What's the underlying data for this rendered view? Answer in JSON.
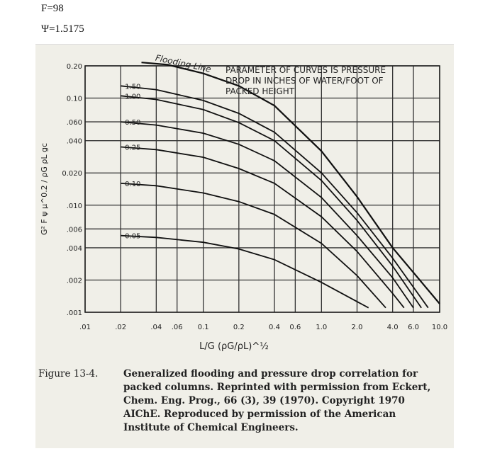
{
  "header": {
    "f_line": "F=98",
    "psi_line": "Ψ=1.5175"
  },
  "figure": {
    "label": "Figure 13-4.",
    "caption": "Generalized flooding and pressure drop correlation for packed columns. Reprinted with permission from Eckert, Chem. Eng. Prog., 66 (3), 39 (1970). Copyright 1970 AIChE. Reproduced by permission of the American Institute of Chemical Engineers."
  },
  "chart_data": {
    "type": "line",
    "xscale": "log",
    "yscale": "log",
    "xlim": [
      0.01,
      10.0
    ],
    "ylim": [
      0.001,
      0.2
    ],
    "grid": true,
    "x_tick_labels": [
      ".01",
      ".02",
      ".04",
      ".06",
      "0.1",
      "0.2",
      "0.4",
      "0.6",
      "1.0",
      "2.0",
      "4.0",
      "6.0",
      "10.0"
    ],
    "y_tick_labels": [
      "0.20",
      "0.10",
      ".060",
      ".040",
      "0.020",
      ".010",
      ".006",
      ".004",
      ".002",
      ".001"
    ],
    "ylabel": "G² F ψ μ^0.2 / ρG ρL gc",
    "xlabel": "L/G (ρG/ρL)^½",
    "annotation": "PARAMETER OF CURVES IS PRESSURE DROP IN INCHES OF WATER/FOOT OF PACKED HEIGHT",
    "series": [
      {
        "name": "Flooding Line",
        "points": [
          [
            0.03,
            0.215
          ],
          [
            0.05,
            0.205
          ],
          [
            0.1,
            0.17
          ],
          [
            0.2,
            0.13
          ],
          [
            0.4,
            0.085
          ],
          [
            1.0,
            0.032
          ],
          [
            2.0,
            0.012
          ],
          [
            4.0,
            0.004
          ],
          [
            10.0,
            0.0012
          ]
        ]
      },
      {
        "name": "1.50",
        "points": [
          [
            0.02,
            0.13
          ],
          [
            0.04,
            0.12
          ],
          [
            0.1,
            0.095
          ],
          [
            0.2,
            0.072
          ],
          [
            0.4,
            0.048
          ],
          [
            1.0,
            0.02
          ],
          [
            2.0,
            0.0085
          ],
          [
            4.0,
            0.0032
          ],
          [
            8.0,
            0.0011
          ]
        ]
      },
      {
        "name": "1.00",
        "points": [
          [
            0.02,
            0.105
          ],
          [
            0.04,
            0.097
          ],
          [
            0.1,
            0.078
          ],
          [
            0.2,
            0.059
          ],
          [
            0.4,
            0.04
          ],
          [
            1.0,
            0.017
          ],
          [
            2.0,
            0.0072
          ],
          [
            4.0,
            0.0027
          ],
          [
            7.0,
            0.0011
          ]
        ]
      },
      {
        "name": "0.50",
        "points": [
          [
            0.02,
            0.06
          ],
          [
            0.04,
            0.056
          ],
          [
            0.1,
            0.047
          ],
          [
            0.2,
            0.037
          ],
          [
            0.4,
            0.026
          ],
          [
            1.0,
            0.0118
          ],
          [
            2.0,
            0.0052
          ],
          [
            4.0,
            0.0021
          ],
          [
            6.0,
            0.0011
          ]
        ]
      },
      {
        "name": "0.25",
        "points": [
          [
            0.02,
            0.035
          ],
          [
            0.04,
            0.033
          ],
          [
            0.1,
            0.028
          ],
          [
            0.2,
            0.022
          ],
          [
            0.4,
            0.016
          ],
          [
            1.0,
            0.0078
          ],
          [
            2.0,
            0.0037
          ],
          [
            4.0,
            0.0015
          ],
          [
            5.0,
            0.0011
          ]
        ]
      },
      {
        "name": "0.10",
        "points": [
          [
            0.02,
            0.016
          ],
          [
            0.04,
            0.0152
          ],
          [
            0.1,
            0.013
          ],
          [
            0.2,
            0.0108
          ],
          [
            0.4,
            0.0082
          ],
          [
            1.0,
            0.0044
          ],
          [
            2.0,
            0.0022
          ],
          [
            3.5,
            0.0011
          ]
        ]
      },
      {
        "name": "0.05",
        "points": [
          [
            0.02,
            0.0052
          ],
          [
            0.04,
            0.005
          ],
          [
            0.1,
            0.0045
          ],
          [
            0.2,
            0.0039
          ],
          [
            0.4,
            0.0031
          ],
          [
            1.0,
            0.0019
          ],
          [
            2.5,
            0.0011
          ]
        ]
      }
    ]
  }
}
